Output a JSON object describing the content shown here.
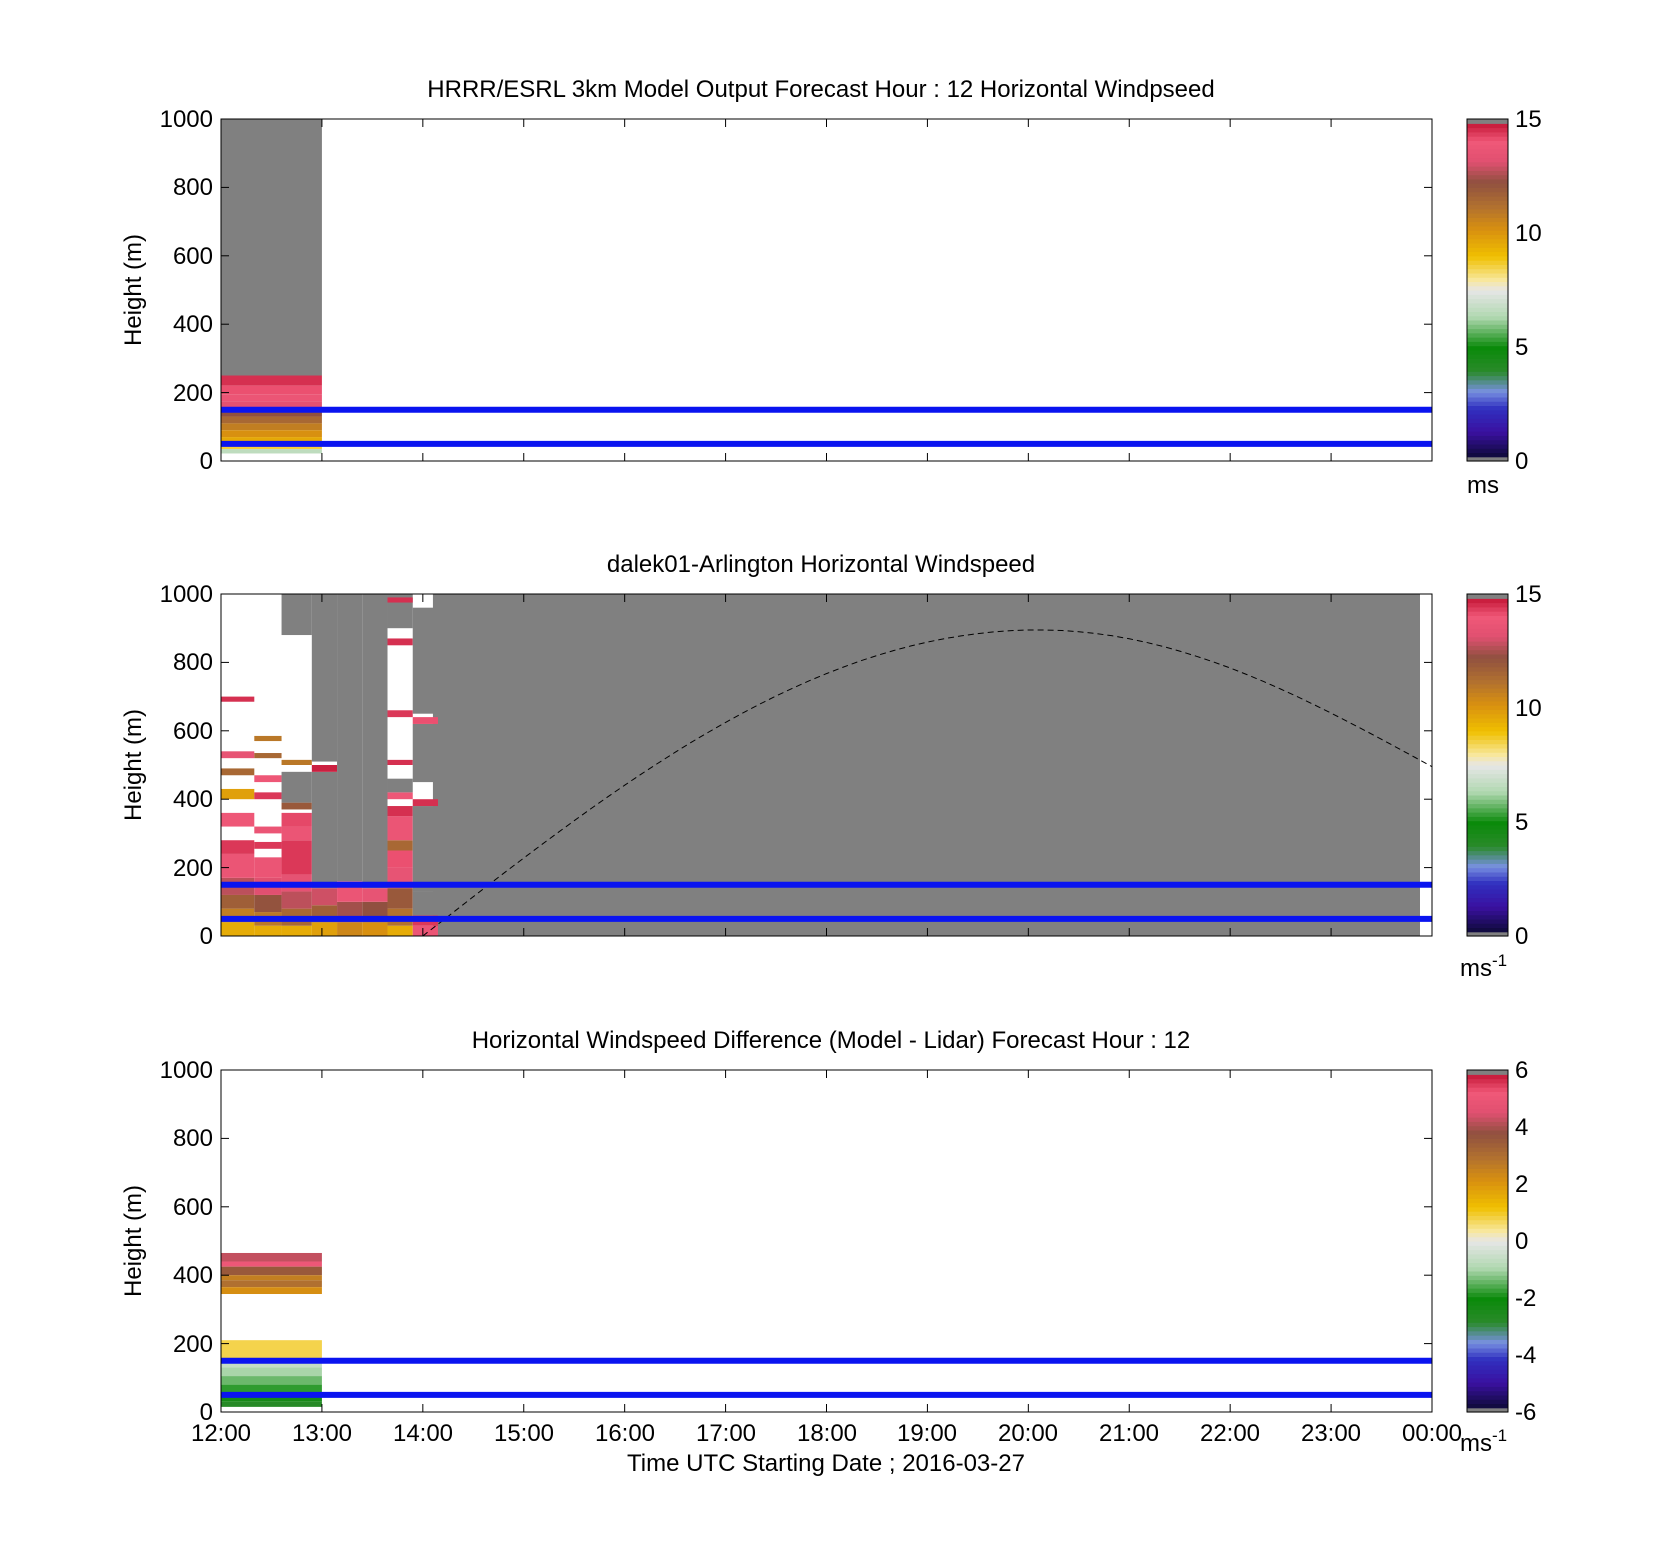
{
  "panels": [
    {
      "title": "HRRR/ESRL 3km Model Output   Forecast Hour : 12 Horizontal Windpseed",
      "ylabel": "Height (m)",
      "yticks": [
        "0",
        "200",
        "400",
        "600",
        "800",
        "1000"
      ],
      "colorbar": {
        "ticks": [
          "0",
          "5",
          "10",
          "15"
        ],
        "unit": "ms",
        "unit_sup": ""
      }
    },
    {
      "title": "dalek01-Arlington  Horizontal Windspeed",
      "ylabel": "Height (m)",
      "yticks": [
        "0",
        "200",
        "400",
        "600",
        "800",
        "1000"
      ],
      "colorbar": {
        "ticks": [
          "0",
          "5",
          "10",
          "15"
        ],
        "unit": "ms",
        "unit_sup": "-1"
      }
    },
    {
      "title": "Horizontal Windspeed Difference (Model - Lidar) Forecast Hour : 12",
      "ylabel": "Height (m)",
      "yticks": [
        "0",
        "200",
        "400",
        "600",
        "800",
        "1000"
      ],
      "colorbar": {
        "ticks": [
          "-6",
          "-4",
          "-2",
          "0",
          "2",
          "4",
          "6"
        ],
        "unit": "ms",
        "unit_sup": "-1"
      }
    }
  ],
  "xticks": [
    "12:00",
    "13:00",
    "14:00",
    "15:00",
    "16:00",
    "17:00",
    "18:00",
    "19:00",
    "20:00",
    "21:00",
    "22:00",
    "23:00",
    "00:00"
  ],
  "xlabel": "Time UTC  Starting Date ; 2016-03-27",
  "chart_data": [
    {
      "type": "heatmap",
      "title": "HRRR/ESRL 3km Model Output   Forecast Hour : 12 Horizontal Windpseed",
      "xlabel": "Time UTC  Starting Date ; 2016-03-27",
      "ylabel": "Height (m)",
      "xlim_hours_utc": [
        12,
        24
      ],
      "ylim": [
        0,
        1000
      ],
      "clim": [
        0,
        15
      ],
      "colorbar_unit": "ms",
      "reference_lines_height_m": [
        50,
        150
      ],
      "columns": [
        {
          "x_start": 12,
          "x_end": 13,
          "cells": [
            {
              "y0": 250,
              "y1": 1000,
              "v": 15.5
            },
            {
              "y0": 220,
              "y1": 250,
              "v": 14.6
            },
            {
              "y0": 195,
              "y1": 220,
              "v": 14.2
            },
            {
              "y0": 175,
              "y1": 195,
              "v": 13.8
            },
            {
              "y0": 150,
              "y1": 175,
              "v": 13.3
            },
            {
              "y0": 130,
              "y1": 150,
              "v": 12.3
            },
            {
              "y0": 110,
              "y1": 130,
              "v": 11.5
            },
            {
              "y0": 90,
              "y1": 110,
              "v": 10.8
            },
            {
              "y0": 70,
              "y1": 90,
              "v": 10.2
            },
            {
              "y0": 50,
              "y1": 70,
              "v": 9.6
            },
            {
              "y0": 35,
              "y1": 50,
              "v": 8.6
            },
            {
              "y0": 22,
              "y1": 35,
              "v": 6.6
            }
          ]
        }
      ]
    },
    {
      "type": "heatmap",
      "title": "dalek01-Arlington  Horizontal Windspeed",
      "xlabel": "Time UTC  Starting Date ; 2016-03-27",
      "ylabel": "Height (m)",
      "xlim_hours_utc": [
        12,
        24
      ],
      "ylim": [
        0,
        1000
      ],
      "clim": [
        0,
        15
      ],
      "colorbar_unit": "ms-1",
      "reference_lines_height_m": [
        50,
        150
      ],
      "dashed_curve": {
        "peak_time": 20.1,
        "peak_height": 895,
        "zero_time": 14.0,
        "end_height": 495
      },
      "columns": [
        {
          "x_start": 12.0,
          "x_end": 12.33,
          "cells": [
            {
              "y0": 0,
              "y1": 40,
              "v": 9.5
            },
            {
              "y0": 40,
              "y1": 80,
              "v": 10.8
            },
            {
              "y0": 80,
              "y1": 120,
              "v": 11.8
            },
            {
              "y0": 120,
              "y1": 170,
              "v": 12.8
            },
            {
              "y0": 170,
              "y1": 240,
              "v": 13.8
            },
            {
              "y0": 240,
              "y1": 280,
              "v": 14.5
            },
            {
              "y0": 320,
              "y1": 360,
              "v": 14.0
            },
            {
              "y0": 400,
              "y1": 430,
              "v": 9.8
            },
            {
              "y0": 470,
              "y1": 490,
              "v": 11.5
            },
            {
              "y0": 520,
              "y1": 540,
              "v": 13.6
            },
            {
              "y0": 685,
              "y1": 700,
              "v": 14.6
            }
          ]
        },
        {
          "x_start": 12.33,
          "x_end": 12.6,
          "cells": [
            {
              "y0": 0,
              "y1": 30,
              "v": 9.5
            },
            {
              "y0": 30,
              "y1": 70,
              "v": 11.0
            },
            {
              "y0": 70,
              "y1": 120,
              "v": 12.2
            },
            {
              "y0": 120,
              "y1": 170,
              "v": 13.2
            },
            {
              "y0": 170,
              "y1": 230,
              "v": 13.8
            },
            {
              "y0": 255,
              "y1": 275,
              "v": 14.5
            },
            {
              "y0": 300,
              "y1": 320,
              "v": 13.8
            },
            {
              "y0": 400,
              "y1": 420,
              "v": 14.5
            },
            {
              "y0": 450,
              "y1": 470,
              "v": 14.0
            },
            {
              "y0": 520,
              "y1": 535,
              "v": 11.5
            },
            {
              "y0": 570,
              "y1": 585,
              "v": 11.0
            }
          ]
        },
        {
          "x_start": 12.6,
          "x_end": 12.9,
          "cells": [
            {
              "y0": 0,
              "y1": 30,
              "v": 9.5
            },
            {
              "y0": 30,
              "y1": 80,
              "v": 11.5
            },
            {
              "y0": 80,
              "y1": 130,
              "v": 12.8
            },
            {
              "y0": 130,
              "y1": 180,
              "v": 13.5
            },
            {
              "y0": 180,
              "y1": 280,
              "v": 14.5
            },
            {
              "y0": 280,
              "y1": 320,
              "v": 13.8
            },
            {
              "y0": 320,
              "y1": 360,
              "v": 14.3
            },
            {
              "y0": 370,
              "y1": 390,
              "v": 12.0
            },
            {
              "y0": 390,
              "y1": 480,
              "v": 15.5
            },
            {
              "y0": 500,
              "y1": 515,
              "v": 11.0
            },
            {
              "y0": 880,
              "y1": 1000,
              "v": 15.5
            }
          ]
        },
        {
          "x_start": 12.9,
          "x_end": 13.15,
          "cells": [
            {
              "y0": 0,
              "y1": 40,
              "v": 9.8
            },
            {
              "y0": 40,
              "y1": 90,
              "v": 11.8
            },
            {
              "y0": 90,
              "y1": 140,
              "v": 13.0
            },
            {
              "y0": 140,
              "y1": 480,
              "v": 15.5
            },
            {
              "y0": 480,
              "y1": 500,
              "v": 14.8
            },
            {
              "y0": 510,
              "y1": 1000,
              "v": 15.5
            }
          ]
        },
        {
          "x_start": 13.15,
          "x_end": 13.4,
          "cells": [
            {
              "y0": 0,
              "y1": 40,
              "v": 10.5
            },
            {
              "y0": 40,
              "y1": 100,
              "v": 12.5
            },
            {
              "y0": 100,
              "y1": 160,
              "v": 13.8
            },
            {
              "y0": 160,
              "y1": 1000,
              "v": 15.5
            }
          ]
        },
        {
          "x_start": 13.4,
          "x_end": 13.65,
          "cells": [
            {
              "y0": 0,
              "y1": 40,
              "v": 10.2
            },
            {
              "y0": 40,
              "y1": 100,
              "v": 12.3
            },
            {
              "y0": 100,
              "y1": 140,
              "v": 13.6
            },
            {
              "y0": 140,
              "y1": 1000,
              "v": 15.5
            }
          ]
        },
        {
          "x_start": 13.65,
          "x_end": 13.9,
          "cells": [
            {
              "y0": 0,
              "y1": 30,
              "v": 9.5
            },
            {
              "y0": 30,
              "y1": 80,
              "v": 11.2
            },
            {
              "y0": 80,
              "y1": 140,
              "v": 12.0
            },
            {
              "y0": 140,
              "y1": 200,
              "v": 13.6
            },
            {
              "y0": 200,
              "y1": 250,
              "v": 14.2
            },
            {
              "y0": 250,
              "y1": 280,
              "v": 11.5
            },
            {
              "y0": 280,
              "y1": 350,
              "v": 13.8
            },
            {
              "y0": 350,
              "y1": 380,
              "v": 14.6
            },
            {
              "y0": 400,
              "y1": 420,
              "v": 14.0
            },
            {
              "y0": 420,
              "y1": 460,
              "v": 15.5
            },
            {
              "y0": 500,
              "y1": 515,
              "v": 14.6
            },
            {
              "y0": 640,
              "y1": 660,
              "v": 14.5
            },
            {
              "y0": 850,
              "y1": 870,
              "v": 14.6
            },
            {
              "y0": 900,
              "y1": 1000,
              "v": 15.5
            },
            {
              "y0": 975,
              "y1": 990,
              "v": 14.6
            }
          ]
        },
        {
          "x_start": 13.9,
          "x_end": 14.15,
          "cells": [
            {
              "y0": 0,
              "y1": 30,
              "v": 13.8
            },
            {
              "y0": 30,
              "y1": 60,
              "v": 14.5
            },
            {
              "y0": 60,
              "y1": 130,
              "v": 15.5
            },
            {
              "y0": 130,
              "y1": 380,
              "v": 15.5
            },
            {
              "y0": 380,
              "y1": 400,
              "v": 14.6
            },
            {
              "y0": 450,
              "y1": 620,
              "v": 15.5
            },
            {
              "y0": 620,
              "y1": 640,
              "v": 14.2
            },
            {
              "y0": 650,
              "y1": 960,
              "v": 15.5
            }
          ]
        }
      ]
    },
    {
      "type": "heatmap",
      "title": "Horizontal Windspeed Difference (Model - Lidar) Forecast Hour : 12",
      "xlabel": "Time UTC  Starting Date ; 2016-03-27",
      "ylabel": "Height (m)",
      "xlim_hours_utc": [
        12,
        24
      ],
      "ylim": [
        0,
        1000
      ],
      "clim": [
        -6,
        6
      ],
      "colorbar_unit": "ms-1",
      "reference_lines_height_m": [
        50,
        150
      ],
      "columns": [
        {
          "x_start": 12,
          "x_end": 13,
          "cells": [
            {
              "y0": 440,
              "y1": 465,
              "v": 4.3
            },
            {
              "y0": 425,
              "y1": 440,
              "v": 5.2
            },
            {
              "y0": 400,
              "y1": 425,
              "v": 3.6
            },
            {
              "y0": 385,
              "y1": 400,
              "v": 2.6
            },
            {
              "y0": 365,
              "y1": 385,
              "v": 3.0
            },
            {
              "y0": 345,
              "y1": 365,
              "v": 2.2
            },
            {
              "y0": 155,
              "y1": 210,
              "v": 0.8
            },
            {
              "y0": 130,
              "y1": 155,
              "v": -0.6
            },
            {
              "y0": 105,
              "y1": 130,
              "v": -1.0
            },
            {
              "y0": 80,
              "y1": 105,
              "v": -1.4
            },
            {
              "y0": 55,
              "y1": 80,
              "v": -1.8
            },
            {
              "y0": 30,
              "y1": 55,
              "v": -2.4
            },
            {
              "y0": 15,
              "y1": 30,
              "v": -2.8
            }
          ]
        }
      ]
    }
  ]
}
